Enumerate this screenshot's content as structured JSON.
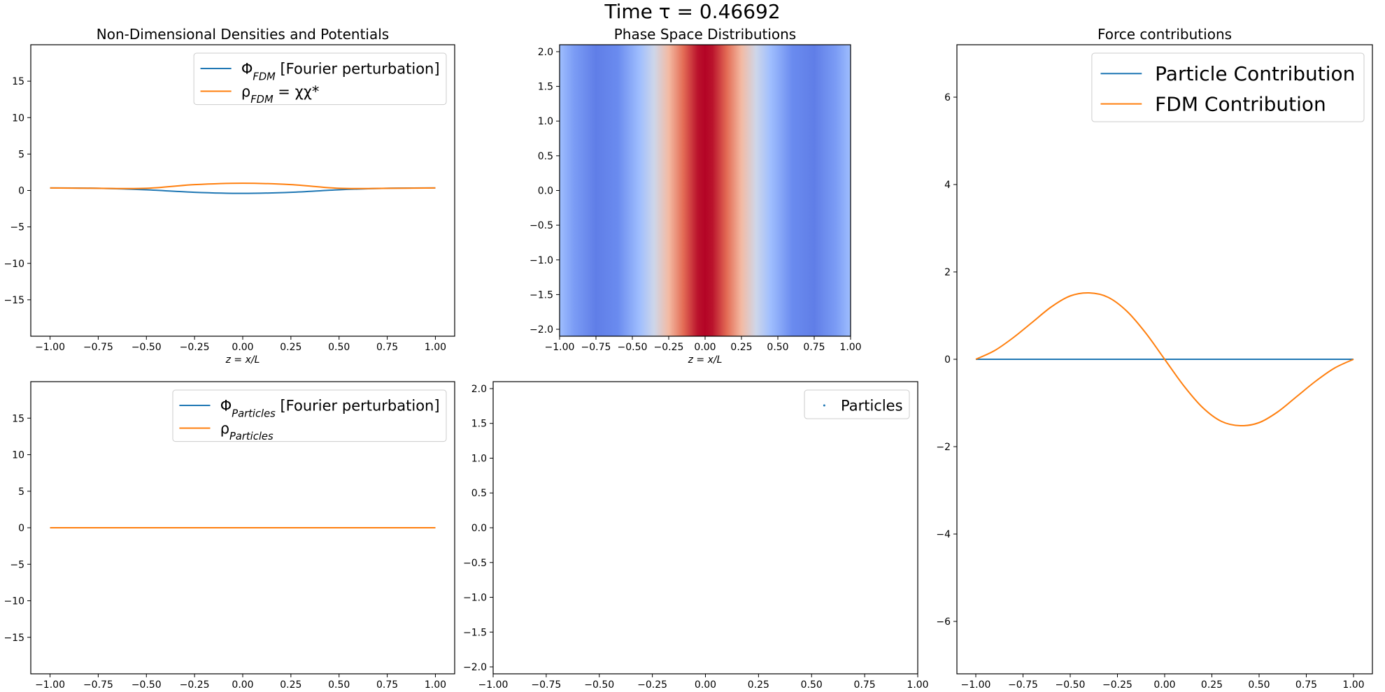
{
  "suptitle": "Time τ = 0.46692",
  "colors": {
    "blue": "#1f77b4",
    "orange": "#ff7f0e",
    "axis": "#000000",
    "legend_border": "#cccccc",
    "cmap": [
      "#3b4cc0",
      "#6788ee",
      "#9abbff",
      "#c9d7f0",
      "#edd1c2",
      "#f7a889",
      "#e26952",
      "#b40426"
    ]
  },
  "chart_data": [
    {
      "id": "densities-fdm",
      "type": "line",
      "title": "Non-Dimensional Densities and Potentials",
      "xlabel": "z = x/L",
      "ylabel": "",
      "xlim": [
        -1.1,
        1.1
      ],
      "ylim": [
        -20,
        20
      ],
      "xticks": [
        -1.0,
        -0.75,
        -0.5,
        -0.25,
        0.0,
        0.25,
        0.5,
        0.75,
        1.0
      ],
      "xtick_labels": [
        "−1.00",
        "−0.75",
        "−0.50",
        "−0.25",
        "0.00",
        "0.25",
        "0.50",
        "0.75",
        "1.00"
      ],
      "yticks": [
        -15,
        -10,
        -5,
        0,
        5,
        10,
        15
      ],
      "ytick_labels": [
        "−15",
        "−10",
        "−5",
        "0",
        "5",
        "10",
        "15"
      ],
      "legend_position": "top-right",
      "x": [
        -1.0,
        -0.75,
        -0.5,
        -0.25,
        0.0,
        0.25,
        0.5,
        0.75,
        1.0
      ],
      "series": [
        {
          "name": "Φ_FDM [Fourier perturbation]",
          "color": "blue",
          "values": [
            0.35,
            0.3,
            0.1,
            -0.25,
            -0.4,
            -0.25,
            0.1,
            0.3,
            0.35
          ]
        },
        {
          "name": "ρ_FDM = χχ*",
          "color": "orange",
          "values": [
            0.35,
            0.3,
            0.3,
            0.8,
            1.0,
            0.8,
            0.3,
            0.3,
            0.35
          ]
        }
      ]
    },
    {
      "id": "phase-space-fdm",
      "type": "heatmap",
      "title": "Phase Space Distributions",
      "xlabel": "z = x/L",
      "ylabel": "",
      "xlim": [
        -1.0,
        1.0
      ],
      "ylim": [
        -2.1,
        2.1
      ],
      "xticks": [
        -1.0,
        -0.75,
        -0.5,
        -0.25,
        0.0,
        0.25,
        0.5,
        0.75,
        1.0
      ],
      "xtick_labels": [
        "−1.00",
        "−0.75",
        "−0.50",
        "−0.25",
        "0.00",
        "0.25",
        "0.50",
        "0.75",
        "1.00"
      ],
      "yticks": [
        -2.0,
        -1.5,
        -1.0,
        -0.5,
        0.0,
        0.5,
        1.0,
        1.5,
        2.0
      ],
      "ytick_labels": [
        "−2.0",
        "−1.5",
        "−1.0",
        "−0.5",
        "0.0",
        "0.5",
        "1.0",
        "1.5",
        "2.0"
      ],
      "z_profile_x": [
        -1.0,
        -0.9,
        -0.75,
        -0.6,
        -0.45,
        -0.35,
        -0.25,
        -0.15,
        -0.05,
        0.0,
        0.05,
        0.15,
        0.25,
        0.35,
        0.45,
        0.6,
        0.75,
        0.9,
        1.0
      ],
      "z_profile_value": [
        0.3,
        0.2,
        0.12,
        0.15,
        0.3,
        0.45,
        0.65,
        0.85,
        0.98,
        1.0,
        0.98,
        0.85,
        0.65,
        0.45,
        0.3,
        0.15,
        0.12,
        0.2,
        0.3
      ]
    },
    {
      "id": "force-contributions",
      "type": "line",
      "title": "Force contributions",
      "xlabel": "",
      "ylabel": "",
      "xlim": [
        -1.1,
        1.1
      ],
      "ylim": [
        -7.2,
        7.2
      ],
      "xticks": [
        -1.0,
        -0.75,
        -0.5,
        -0.25,
        0.0,
        0.25,
        0.5,
        0.75,
        1.0
      ],
      "xtick_labels": [
        "−1.00",
        "−0.75",
        "−0.50",
        "−0.25",
        "0.00",
        "0.25",
        "0.50",
        "0.75",
        "1.00"
      ],
      "yticks": [
        -6,
        -4,
        -2,
        0,
        2,
        4,
        6
      ],
      "ytick_labels": [
        "−6",
        "−4",
        "−2",
        "0",
        "2",
        "4",
        "6"
      ],
      "legend_position": "top-right",
      "x": [
        -1.0,
        -0.9,
        -0.8,
        -0.7,
        -0.6,
        -0.5,
        -0.4,
        -0.3,
        -0.2,
        -0.1,
        0.0,
        0.1,
        0.2,
        0.3,
        0.4,
        0.5,
        0.6,
        0.7,
        0.8,
        0.9,
        1.0
      ],
      "series": [
        {
          "name": "Particle Contribution",
          "color": "blue",
          "values": [
            0,
            0,
            0,
            0,
            0,
            0,
            0,
            0,
            0,
            0,
            0,
            0,
            0,
            0,
            0,
            0,
            0,
            0,
            0,
            0,
            0
          ]
        },
        {
          "name": "FDM Contribution",
          "color": "orange",
          "values": [
            0,
            0.2,
            0.5,
            0.85,
            1.2,
            1.45,
            1.52,
            1.42,
            1.1,
            0.6,
            0,
            -0.6,
            -1.1,
            -1.42,
            -1.52,
            -1.45,
            -1.2,
            -0.85,
            -0.5,
            -0.2,
            0
          ]
        }
      ]
    },
    {
      "id": "densities-particles",
      "type": "line",
      "title": "",
      "xlabel": "",
      "ylabel": "",
      "xlim": [
        -1.1,
        1.1
      ],
      "ylim": [
        -20,
        20
      ],
      "xticks": [
        -1.0,
        -0.75,
        -0.5,
        -0.25,
        0.0,
        0.25,
        0.5,
        0.75,
        1.0
      ],
      "xtick_labels": [
        "−1.00",
        "−0.75",
        "−0.50",
        "−0.25",
        "0.00",
        "0.25",
        "0.50",
        "0.75",
        "1.00"
      ],
      "yticks": [
        -15,
        -10,
        -5,
        0,
        5,
        10,
        15
      ],
      "ytick_labels": [
        "−15",
        "−10",
        "−5",
        "0",
        "5",
        "10",
        "15"
      ],
      "legend_position": "top-right",
      "x": [
        -1.0,
        1.0
      ],
      "series": [
        {
          "name": "Φ_Particles [Fourier perturbation]",
          "color": "blue",
          "values": [
            0,
            0
          ]
        },
        {
          "name": "ρ_Particles",
          "color": "orange",
          "values": [
            0,
            0
          ]
        }
      ]
    },
    {
      "id": "phase-space-particles",
      "type": "scatter",
      "title": "",
      "xlabel": "",
      "ylabel": "",
      "xlim": [
        -1.0,
        1.0
      ],
      "ylim": [
        -2.1,
        2.1
      ],
      "xticks": [
        -1.0,
        -0.75,
        -0.5,
        -0.25,
        0.0,
        0.25,
        0.5,
        0.75,
        1.0
      ],
      "xtick_labels": [
        "−1.00",
        "−0.75",
        "−0.50",
        "−0.25",
        "0.00",
        "0.25",
        "0.50",
        "0.75",
        "1.00"
      ],
      "yticks": [
        -2.0,
        -1.5,
        -1.0,
        -0.5,
        0.0,
        0.5,
        1.0,
        1.5,
        2.0
      ],
      "ytick_labels": [
        "−2.0",
        "−1.5",
        "−1.0",
        "−0.5",
        "0.0",
        "0.5",
        "1.0",
        "1.5",
        "2.0"
      ],
      "legend_position": "top-right",
      "series": [
        {
          "name": "Particles",
          "color": "blue",
          "points": []
        }
      ]
    }
  ]
}
